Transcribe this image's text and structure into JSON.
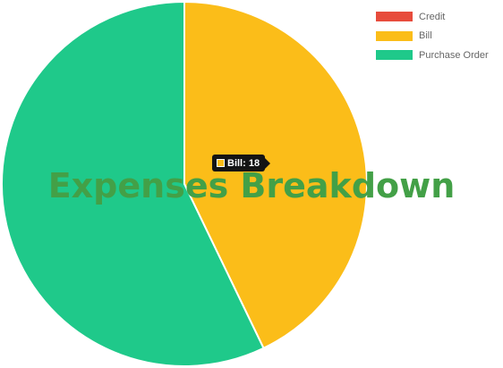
{
  "chart_data": {
    "type": "pie",
    "title": "Expenses Breakdown",
    "legend_position": "top-right",
    "slices": [
      {
        "label": "Credit",
        "value": 0,
        "color": "#e74c3c"
      },
      {
        "label": "Bill",
        "value": 18,
        "color": "#fbbd19"
      },
      {
        "label": "Purchase Order",
        "value": 24,
        "color": "#1fc98a"
      }
    ],
    "tooltip": {
      "text": "Bill: 18",
      "color": "#fbbd19"
    }
  }
}
